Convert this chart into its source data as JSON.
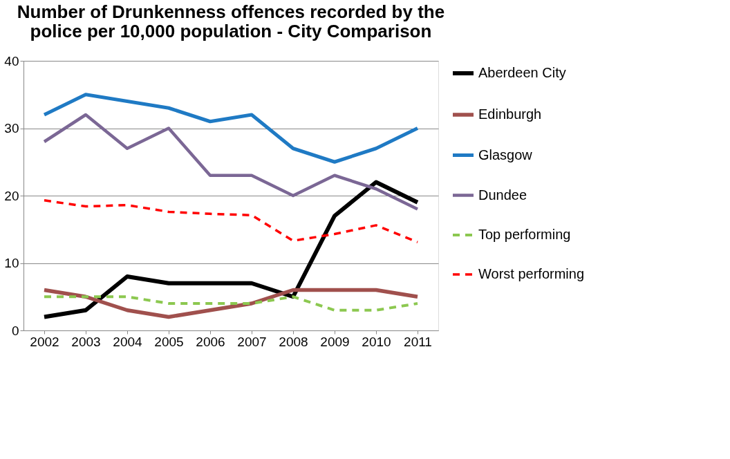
{
  "chart_data": {
    "type": "line",
    "title": "Number of Drunkenness offences recorded by the police per 10,000 population - City Comparison",
    "categories": [
      "2002",
      "2003",
      "2004",
      "2005",
      "2006",
      "2007",
      "2008",
      "2009",
      "2010",
      "2011"
    ],
    "ylim": [
      0,
      40
    ],
    "yticks": [
      0,
      10,
      20,
      30,
      40
    ],
    "grid": "y",
    "legend": "right",
    "marker": "none",
    "series": [
      {
        "name": "Aberdeen City",
        "color": "#000000",
        "line_style": "solid",
        "values": [
          2,
          3,
          8,
          7,
          7,
          7,
          5,
          17,
          22,
          19
        ]
      },
      {
        "name": "Edinburgh",
        "color": "#a0504d",
        "line_style": "solid",
        "values": [
          6,
          5,
          3,
          2,
          3,
          4,
          6,
          6,
          6,
          5
        ]
      },
      {
        "name": "Glasgow",
        "color": "#1f7ac4",
        "line_style": "solid",
        "values": [
          32,
          35,
          34,
          33,
          31,
          32,
          27,
          25,
          27,
          30
        ]
      },
      {
        "name": "Dundee",
        "color": "#7b6795",
        "line_style": "solid",
        "values": [
          28,
          32,
          27,
          30,
          23,
          23,
          20,
          23,
          21,
          18
        ]
      },
      {
        "name": "Top performing",
        "color": "#8cc850",
        "line_style": "dashed",
        "values": [
          5,
          5,
          5,
          4,
          4,
          4,
          5,
          3,
          3,
          4
        ]
      },
      {
        "name": "Worst performing",
        "color": "#ff0000",
        "line_style": "dashed",
        "values": [
          19.3,
          18.4,
          18.6,
          17.6,
          17.3,
          17.1,
          13.3,
          14.3,
          15.6,
          13.1
        ]
      }
    ]
  }
}
